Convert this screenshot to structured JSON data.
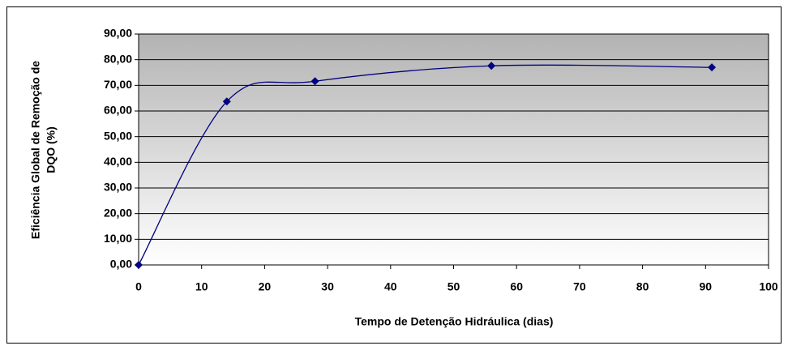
{
  "chart_data": {
    "type": "line",
    "xlabel": "Tempo de Detenção Hidráulica (dias)",
    "ylabel": [
      "Eficiência Global de Remoção de",
      "DQO (%)"
    ],
    "x": [
      0,
      14,
      28,
      56,
      91
    ],
    "series": [
      {
        "color": "#000080",
        "values": [
          0,
          63.7,
          71.6,
          77.6,
          77.0
        ]
      }
    ],
    "smooth": true,
    "xlim": [
      0,
      100
    ],
    "xticks": [
      0,
      10,
      20,
      30,
      40,
      50,
      60,
      70,
      80,
      90,
      100
    ],
    "ylim": [
      0,
      90
    ],
    "yticks": [
      {
        "value": 0,
        "label": "0,00"
      },
      {
        "value": 10,
        "label": "10,00"
      },
      {
        "value": 20,
        "label": "20,00"
      },
      {
        "value": 30,
        "label": "30,00"
      },
      {
        "value": 40,
        "label": "40,00"
      },
      {
        "value": 50,
        "label": "50,00"
      },
      {
        "value": 60,
        "label": "60,00"
      },
      {
        "value": 70,
        "label": "70,00"
      },
      {
        "value": 80,
        "label": "80,00"
      },
      {
        "value": 90,
        "label": "90,00"
      }
    ],
    "grid": true
  }
}
